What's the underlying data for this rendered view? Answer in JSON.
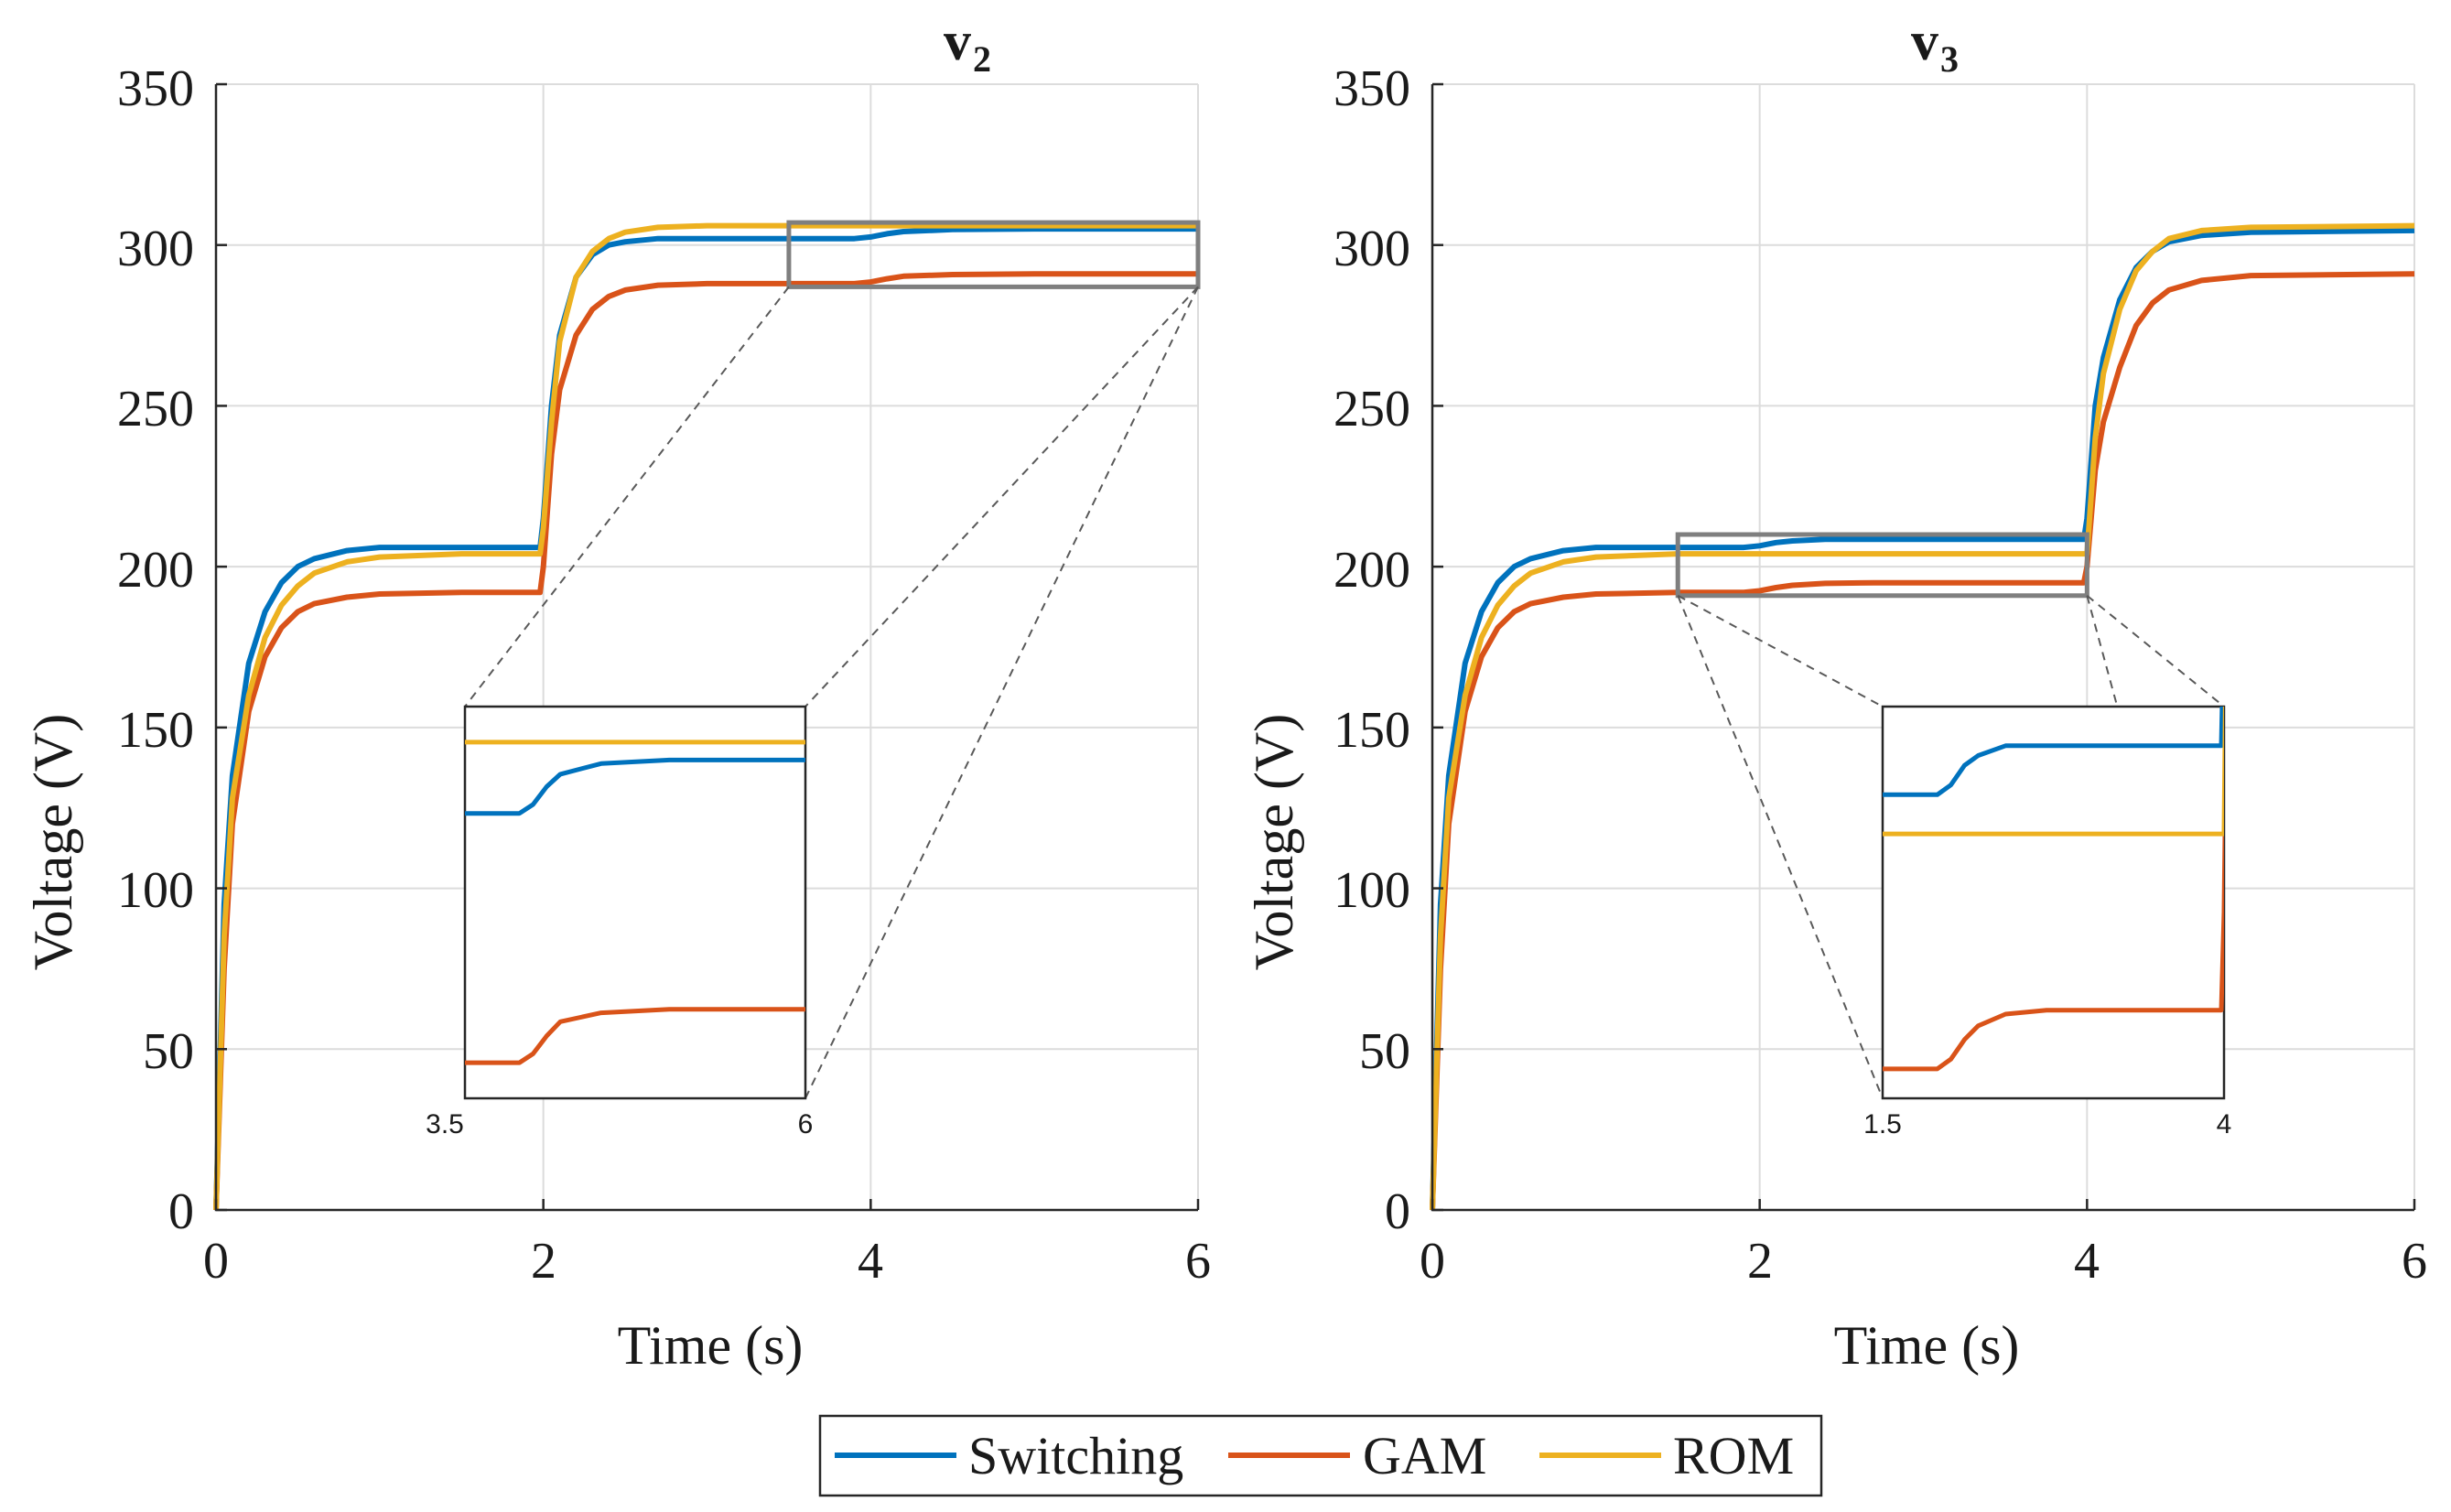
{
  "colors": {
    "switching": "#0072BD",
    "gam": "#D95319",
    "rom": "#EDB120",
    "zoom_box": "#7f7f7f",
    "axis": "#262626",
    "grid": "#dcdcdc"
  },
  "legend": {
    "entries": [
      "Switching",
      "GAM",
      "ROM"
    ],
    "placement": "bottom-center"
  },
  "chart_data": [
    {
      "type": "line",
      "title": "v",
      "title_subscript": "2",
      "xlabel": "Time (s)",
      "ylabel": "Voltage (V)",
      "xlim": [
        0,
        6
      ],
      "ylim": [
        0,
        350
      ],
      "xticks": [
        "0",
        "2",
        "4",
        "6"
      ],
      "yticks": [
        "0",
        "50",
        "100",
        "150",
        "200",
        "250",
        "300",
        "350"
      ],
      "grid": true,
      "series": [
        {
          "name": "Switching",
          "x": [
            0,
            0.05,
            0.1,
            0.2,
            0.3,
            0.4,
            0.5,
            0.6,
            0.8,
            1.0,
            1.5,
            1.98,
            2.0,
            2.05,
            2.1,
            2.2,
            2.3,
            2.4,
            2.5,
            2.7,
            3.0,
            3.5,
            3.9,
            4.0,
            4.1,
            4.2,
            4.5,
            5.0,
            6.0
          ],
          "values": [
            0,
            95,
            135,
            170,
            186,
            195,
            200,
            202.5,
            205,
            206,
            206,
            206,
            215,
            250,
            272,
            290,
            297,
            300,
            301,
            302,
            302,
            302,
            302,
            302.5,
            303.5,
            304.2,
            304.8,
            305,
            305
          ]
        },
        {
          "name": "GAM",
          "x": [
            0,
            0.05,
            0.1,
            0.2,
            0.3,
            0.4,
            0.5,
            0.6,
            0.8,
            1.0,
            1.5,
            1.98,
            2.0,
            2.05,
            2.1,
            2.2,
            2.3,
            2.4,
            2.5,
            2.7,
            3.0,
            3.5,
            3.9,
            4.0,
            4.1,
            4.2,
            4.5,
            5.0,
            6.0
          ],
          "values": [
            0,
            75,
            120,
            155,
            172,
            181,
            186,
            188.5,
            190.5,
            191.5,
            192,
            192,
            200,
            235,
            255,
            272,
            280,
            284,
            286,
            287.5,
            288,
            288,
            288,
            288.5,
            289.5,
            290.3,
            290.8,
            291,
            291
          ]
        },
        {
          "name": "ROM",
          "x": [
            0,
            0.05,
            0.1,
            0.2,
            0.3,
            0.4,
            0.5,
            0.6,
            0.8,
            1.0,
            1.5,
            1.98,
            2.0,
            2.05,
            2.1,
            2.2,
            2.3,
            2.4,
            2.5,
            2.7,
            3.0,
            3.5,
            4.0,
            5.0,
            6.0
          ],
          "values": [
            0,
            85,
            128,
            160,
            178,
            188,
            194,
            198,
            201.5,
            203,
            204,
            204,
            212,
            245,
            270,
            290,
            298,
            302,
            304,
            305.5,
            306,
            306,
            306,
            306,
            306
          ]
        }
      ],
      "zoom_region": {
        "xlim": [
          3.5,
          6
        ],
        "ylim": [
          287,
          307
        ]
      },
      "inset": {
        "xticks": [
          "3.5",
          "6"
        ],
        "xlim": [
          3.5,
          6
        ],
        "ylim": [
          286,
          308
        ]
      }
    },
    {
      "type": "line",
      "title": "v",
      "title_subscript": "3",
      "xlabel": "Time (s)",
      "ylabel": "Voltage (V)",
      "xlim": [
        0,
        6
      ],
      "ylim": [
        0,
        350
      ],
      "xticks": [
        "0",
        "2",
        "4",
        "6"
      ],
      "yticks": [
        "0",
        "50",
        "100",
        "150",
        "200",
        "250",
        "300",
        "350"
      ],
      "grid": true,
      "series": [
        {
          "name": "Switching",
          "x": [
            0,
            0.05,
            0.1,
            0.2,
            0.3,
            0.4,
            0.5,
            0.6,
            0.8,
            1.0,
            1.5,
            1.9,
            2.0,
            2.1,
            2.2,
            2.4,
            2.7,
            3.0,
            3.5,
            3.98,
            4.0,
            4.05,
            4.1,
            4.2,
            4.3,
            4.4,
            4.5,
            4.7,
            5.0,
            6.0
          ],
          "values": [
            0,
            95,
            135,
            170,
            186,
            195,
            200,
            202.5,
            205,
            206,
            206,
            206,
            206.5,
            207.5,
            208,
            208.5,
            208.5,
            208.5,
            208.5,
            208.5,
            215,
            250,
            265,
            283,
            293,
            298,
            301,
            303,
            304,
            304.5
          ]
        },
        {
          "name": "GAM",
          "x": [
            0,
            0.05,
            0.1,
            0.2,
            0.3,
            0.4,
            0.5,
            0.6,
            0.8,
            1.0,
            1.5,
            1.9,
            2.0,
            2.1,
            2.2,
            2.4,
            2.7,
            3.0,
            3.5,
            3.98,
            4.0,
            4.05,
            4.1,
            4.2,
            4.3,
            4.4,
            4.5,
            4.7,
            5.0,
            6.0
          ],
          "values": [
            0,
            75,
            120,
            155,
            172,
            181,
            186,
            188.5,
            190.5,
            191.5,
            192,
            192,
            192.5,
            193.5,
            194.2,
            194.8,
            195,
            195,
            195,
            195,
            200,
            230,
            245,
            262,
            275,
            282,
            286,
            289,
            290.5,
            291
          ]
        },
        {
          "name": "ROM",
          "x": [
            0,
            0.05,
            0.1,
            0.2,
            0.3,
            0.4,
            0.5,
            0.6,
            0.8,
            1.0,
            1.5,
            1.98,
            4.0,
            4.05,
            4.1,
            4.2,
            4.3,
            4.4,
            4.5,
            4.7,
            5.0,
            6.0
          ],
          "values": [
            0,
            85,
            128,
            160,
            178,
            188,
            194,
            198,
            201.5,
            203,
            204,
            204,
            204,
            240,
            260,
            280,
            292,
            298,
            302,
            304.5,
            305.5,
            306
          ]
        }
      ],
      "zoom_region": {
        "xlim": [
          1.5,
          4
        ],
        "ylim": [
          191,
          210
        ]
      },
      "inset": {
        "xticks": [
          "1.5",
          "4"
        ],
        "xlim": [
          1.5,
          4
        ],
        "ylim": [
          190.5,
          210.5
        ]
      }
    }
  ]
}
